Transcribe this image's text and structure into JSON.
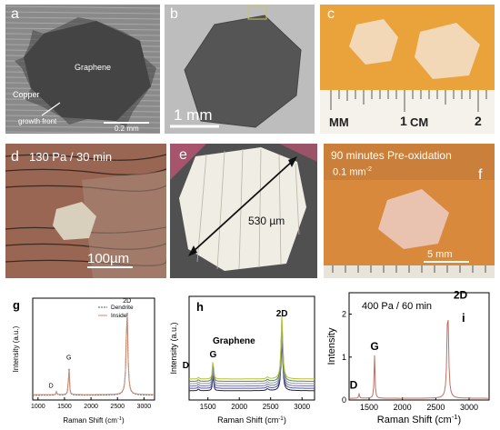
{
  "panels": {
    "a": {
      "letter": "a",
      "graphene": "Graphene",
      "copper": "Copper",
      "growth_front": "growth front",
      "scale": "0.2 mm"
    },
    "b": {
      "letter": "b",
      "scale": "1 mm"
    },
    "c": {
      "letter": "c",
      "ruler": {
        "mm": "MM",
        "one": "1",
        "cm": "CM",
        "two": "2"
      }
    },
    "d": {
      "letter": "d",
      "condition": "130 Pa / 30 min",
      "scale": "100µm"
    },
    "e": {
      "letter": "e",
      "size": "530 µm"
    },
    "f": {
      "letter": "f",
      "title": "90 minutes Pre-oxidation",
      "density": "0.1 mm",
      "density_exp": "-2",
      "scale": "5 mm"
    }
  },
  "chart_data": [
    {
      "panel": "g",
      "type": "line",
      "title": "",
      "xlabel": "Raman Shift (cm",
      "xlabel_exp": "-1",
      "xlabel_close": ")",
      "ylabel": "Intensity (a.u.)",
      "xlim": [
        900,
        3200
      ],
      "xticks": [
        "1000",
        "1500",
        "2000",
        "2500",
        "3000"
      ],
      "legend": [
        "Dendrite",
        "Inside"
      ],
      "legend_position": "top-right",
      "peaks": [
        {
          "label": "D",
          "x": 1350
        },
        {
          "label": "G",
          "x": 1582
        },
        {
          "label": "2D",
          "x": 2680
        }
      ],
      "series": [
        {
          "name": "Dendrite",
          "peaks": [
            {
              "x": 1350,
              "y": 0.04
            },
            {
              "x": 1582,
              "y": 0.33
            },
            {
              "x": 2680,
              "y": 0.92
            }
          ]
        },
        {
          "name": "Inside",
          "peaks": [
            {
              "x": 1350,
              "y": 0.03
            },
            {
              "x": 1582,
              "y": 0.3
            },
            {
              "x": 2680,
              "y": 0.88
            }
          ]
        }
      ]
    },
    {
      "panel": "h",
      "type": "line",
      "title": "Graphene",
      "xlabel": "Raman Shift (cm",
      "xlabel_exp": "-1",
      "xlabel_close": ")",
      "ylabel": "Intensity (a.u.)",
      "xlim": [
        1200,
        3200
      ],
      "xticks": [
        "1500",
        "2000",
        "2500",
        "3000"
      ],
      "peaks": [
        {
          "label": "D",
          "x": 1350
        },
        {
          "label": "G",
          "x": 1582
        },
        {
          "label": "2D",
          "x": 2680
        }
      ],
      "series_count": 6
    },
    {
      "panel": "i",
      "type": "line",
      "title": "400 Pa / 60 min",
      "xlabel": "Raman Shift (cm",
      "xlabel_exp": "-1",
      "xlabel_close": ")",
      "ylabel": "Intensity",
      "xlim": [
        1200,
        3300
      ],
      "ylim": [
        0,
        2.5
      ],
      "xticks": [
        "1500",
        "2000",
        "2500",
        "3000"
      ],
      "yticks": [
        "0",
        "1",
        "2"
      ],
      "peaks": [
        {
          "label": "D",
          "x": 1350,
          "y": 0.1
        },
        {
          "label": "G",
          "x": 1582,
          "y": 1.0
        },
        {
          "label": "2D",
          "x": 2680,
          "y": 2.2
        }
      ]
    }
  ]
}
